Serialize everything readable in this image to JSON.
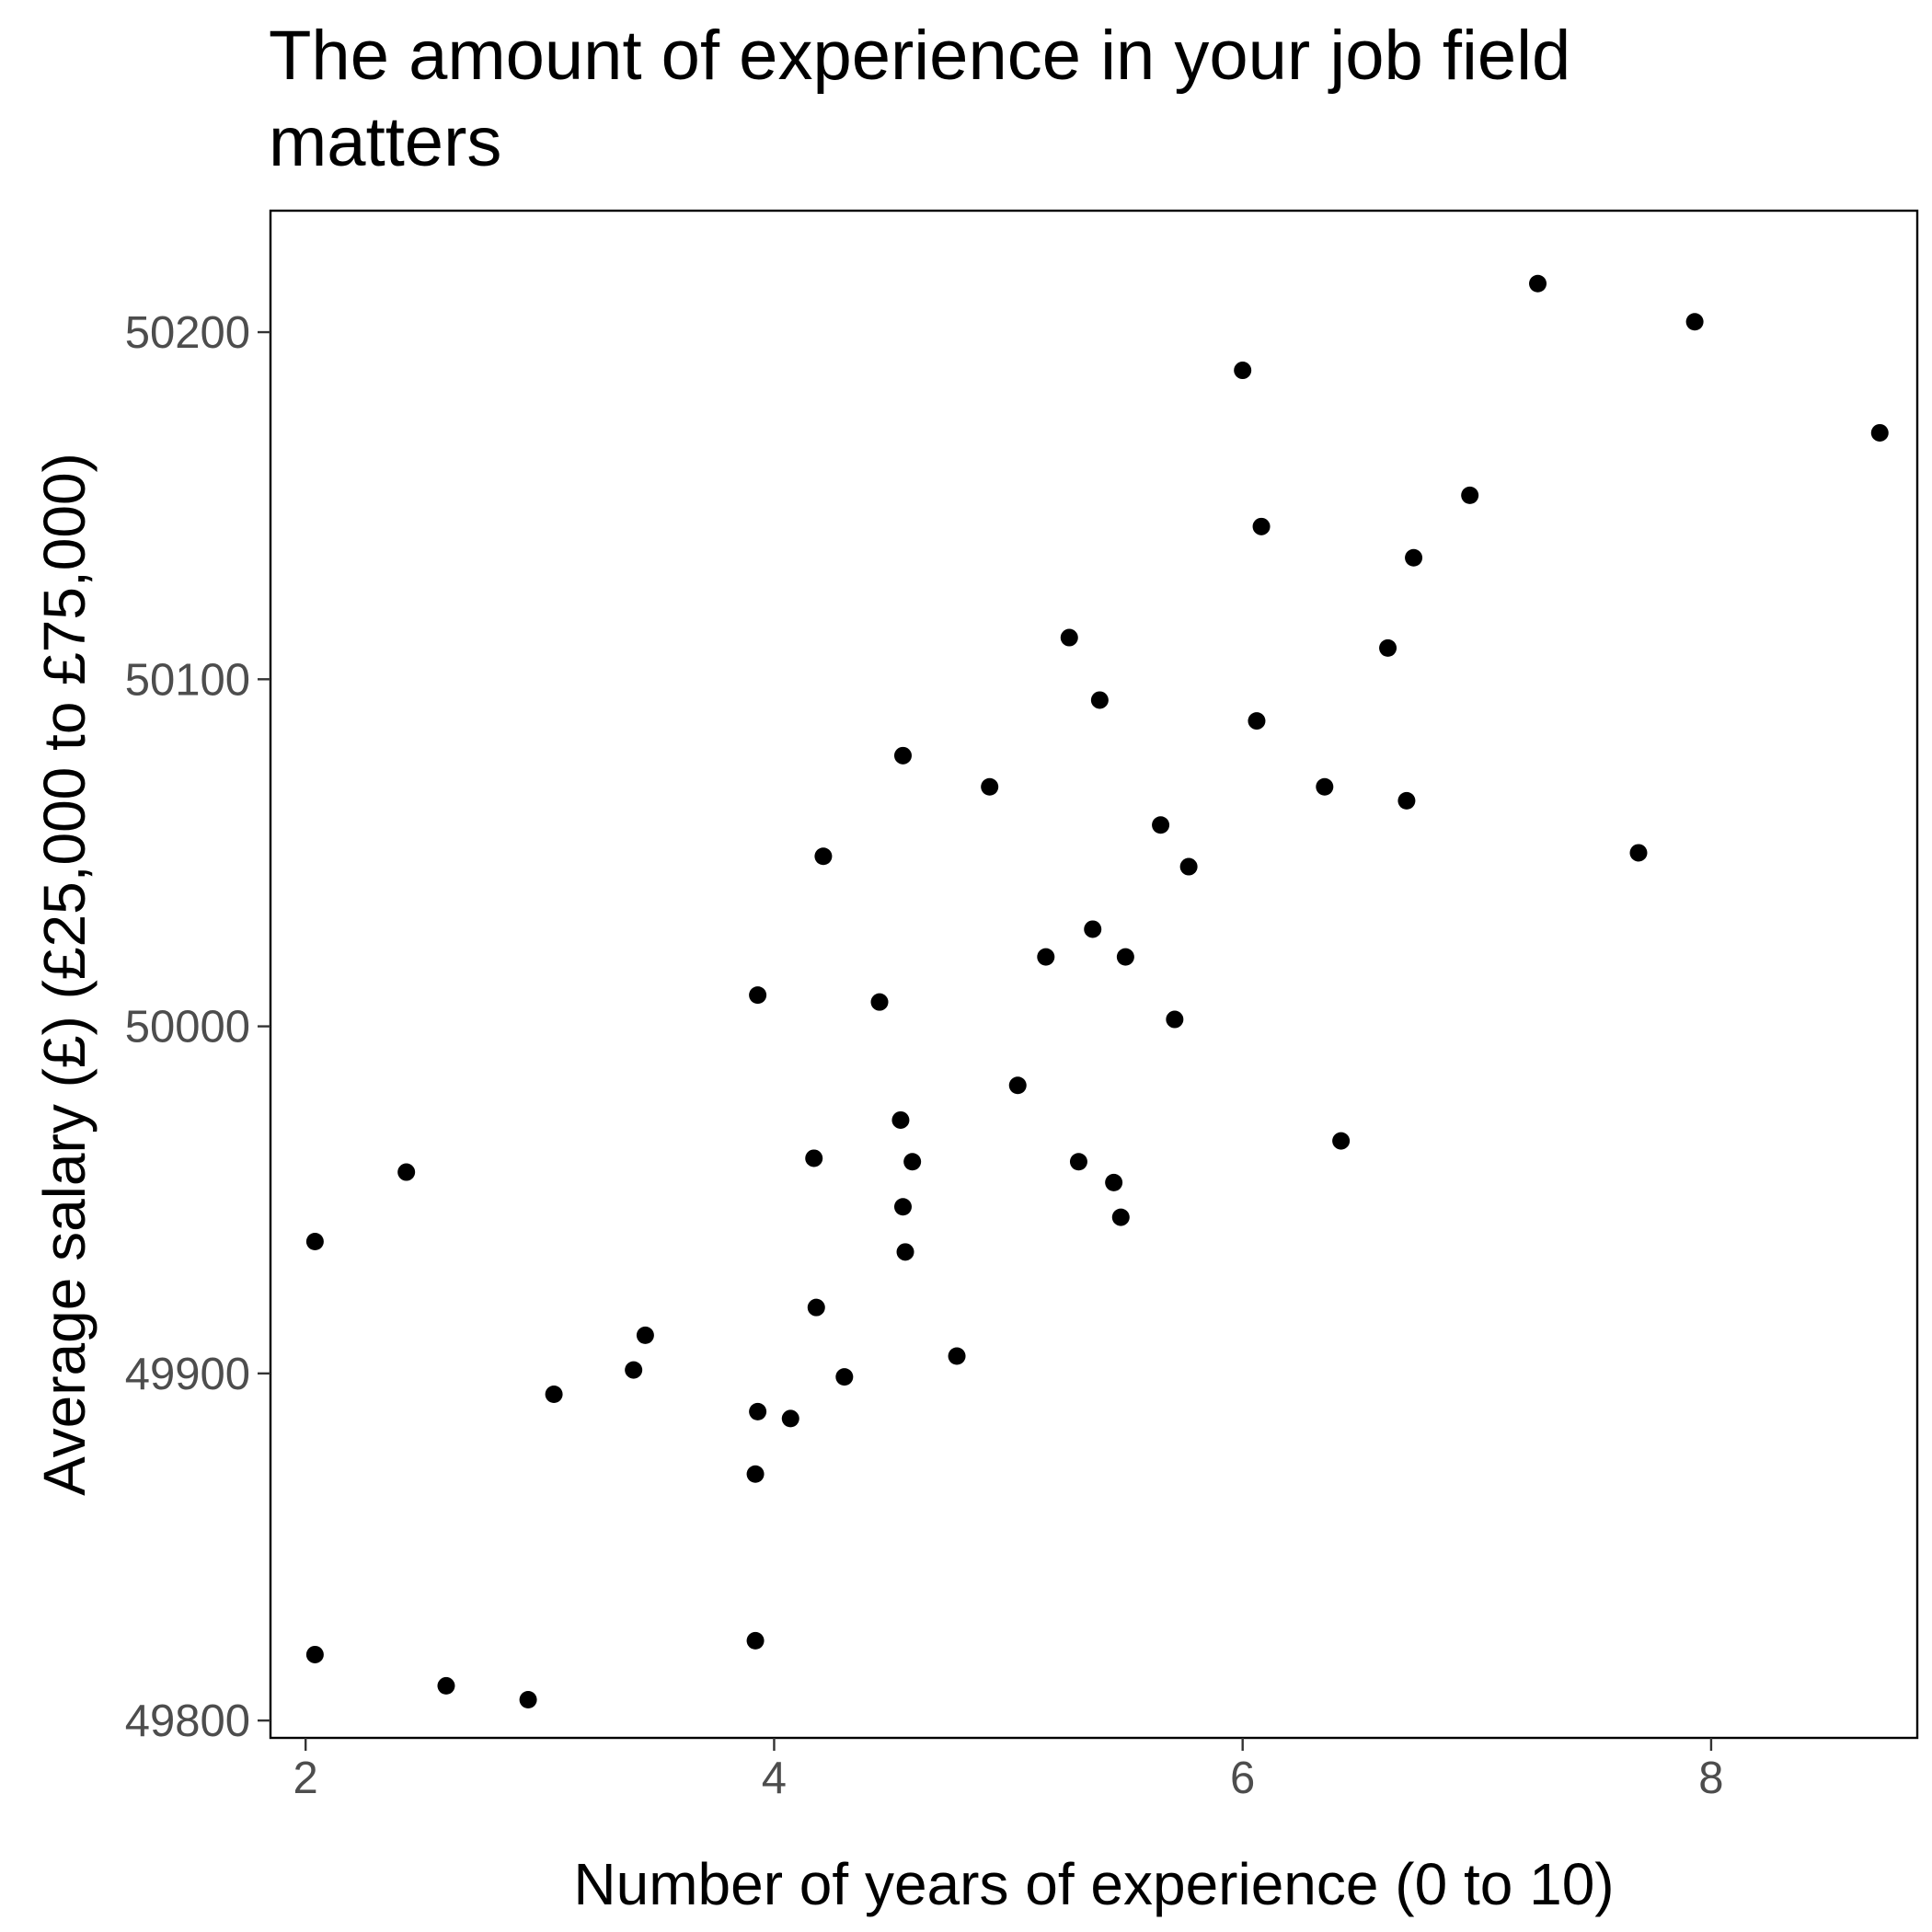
{
  "chart_data": {
    "type": "scatter",
    "title": "The amount of experience in your job field matters",
    "title_lines": [
      "The amount of experience in your job field",
      "matters"
    ],
    "xlabel": "Number of years of experience (0 to 10)",
    "ylabel": "Average salary (£) (£25,000 to £75,000)",
    "xlim": [
      1.85,
      8.88
    ],
    "ylim": [
      49795,
      50235
    ],
    "xticks": [
      2,
      4,
      6,
      8
    ],
    "yticks": [
      49800,
      49900,
      50000,
      50100,
      50200
    ],
    "grid": false,
    "legend": "none",
    "point_color": "#000000",
    "points": [
      {
        "x": 2.04,
        "y": 49938
      },
      {
        "x": 2.04,
        "y": 49819
      },
      {
        "x": 2.43,
        "y": 49958
      },
      {
        "x": 2.6,
        "y": 49810
      },
      {
        "x": 2.95,
        "y": 49806
      },
      {
        "x": 3.06,
        "y": 49894
      },
      {
        "x": 3.4,
        "y": 49901
      },
      {
        "x": 3.45,
        "y": 49911
      },
      {
        "x": 3.92,
        "y": 49823
      },
      {
        "x": 3.92,
        "y": 49871
      },
      {
        "x": 3.93,
        "y": 49889
      },
      {
        "x": 3.93,
        "y": 50009
      },
      {
        "x": 4.07,
        "y": 49887
      },
      {
        "x": 4.17,
        "y": 49962
      },
      {
        "x": 4.18,
        "y": 49919
      },
      {
        "x": 4.21,
        "y": 50049
      },
      {
        "x": 4.3,
        "y": 49899
      },
      {
        "x": 4.45,
        "y": 50007
      },
      {
        "x": 4.54,
        "y": 49973
      },
      {
        "x": 4.55,
        "y": 49948
      },
      {
        "x": 4.55,
        "y": 50078
      },
      {
        "x": 4.56,
        "y": 49935
      },
      {
        "x": 4.59,
        "y": 49961
      },
      {
        "x": 4.78,
        "y": 49905
      },
      {
        "x": 4.92,
        "y": 50069
      },
      {
        "x": 5.04,
        "y": 49983
      },
      {
        "x": 5.16,
        "y": 50020
      },
      {
        "x": 5.26,
        "y": 50112
      },
      {
        "x": 5.3,
        "y": 49961
      },
      {
        "x": 5.36,
        "y": 50028
      },
      {
        "x": 5.39,
        "y": 50094
      },
      {
        "x": 5.45,
        "y": 49955
      },
      {
        "x": 5.48,
        "y": 49945
      },
      {
        "x": 5.5,
        "y": 50020
      },
      {
        "x": 5.65,
        "y": 50058
      },
      {
        "x": 5.71,
        "y": 50002
      },
      {
        "x": 5.77,
        "y": 50046
      },
      {
        "x": 6.0,
        "y": 50189
      },
      {
        "x": 6.06,
        "y": 50088
      },
      {
        "x": 6.08,
        "y": 50144
      },
      {
        "x": 6.35,
        "y": 50069
      },
      {
        "x": 6.42,
        "y": 49967
      },
      {
        "x": 6.62,
        "y": 50109
      },
      {
        "x": 6.7,
        "y": 50065
      },
      {
        "x": 6.73,
        "y": 50135
      },
      {
        "x": 6.97,
        "y": 50153
      },
      {
        "x": 7.26,
        "y": 50214
      },
      {
        "x": 7.69,
        "y": 50050
      },
      {
        "x": 7.93,
        "y": 50203
      },
      {
        "x": 8.72,
        "y": 50171
      }
    ]
  }
}
